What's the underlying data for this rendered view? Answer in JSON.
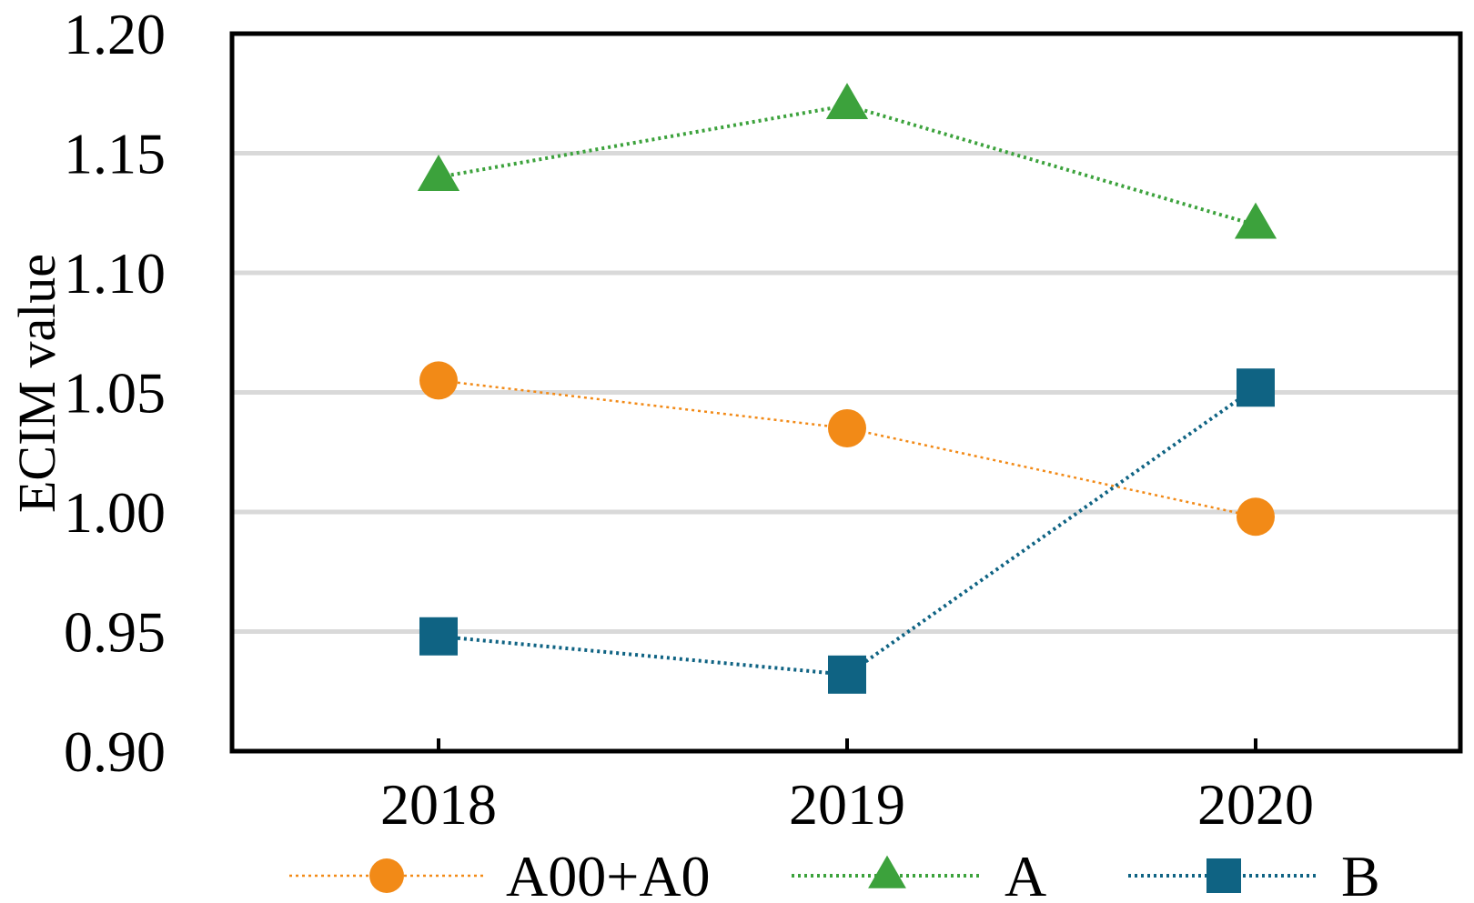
{
  "chart_data": {
    "type": "line",
    "title": "",
    "xlabel": "",
    "ylabel": "ECIM value",
    "categories": [
      "2018",
      "2019",
      "2020"
    ],
    "ylim": [
      0.9,
      1.2
    ],
    "yticks": [
      "0.90",
      "0.95",
      "1.00",
      "1.05",
      "1.10",
      "1.15",
      "1.20"
    ],
    "grid": true,
    "legend_position": "bottom",
    "series": [
      {
        "name": "A00+A0",
        "values": [
          1.055,
          1.035,
          0.998
        ],
        "color": "#F28A17",
        "marker": "circle"
      },
      {
        "name": "A",
        "values": [
          1.14,
          1.17,
          1.12
        ],
        "color": "#3CA23C",
        "marker": "triangle"
      },
      {
        "name": "B",
        "values": [
          0.948,
          0.932,
          1.052
        ],
        "color": "#0F6383",
        "marker": "square"
      }
    ]
  }
}
